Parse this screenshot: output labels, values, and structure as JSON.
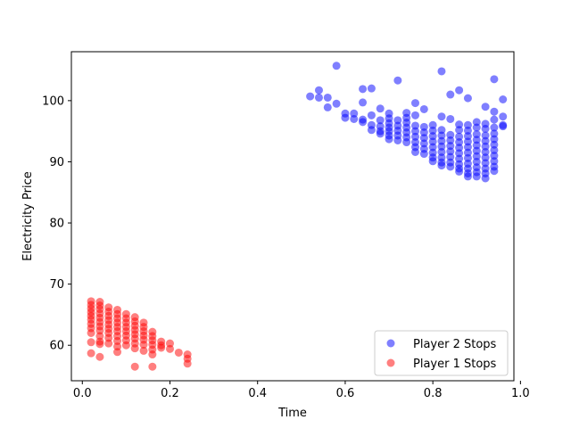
{
  "chart_data": {
    "type": "scatter",
    "title": "",
    "xlabel": "Time",
    "ylabel": "Electricity Price",
    "xlim": [
      -0.025,
      0.985
    ],
    "ylim": [
      54.2,
      108.0
    ],
    "xticks": [
      0.0,
      0.2,
      0.4,
      0.6,
      0.8,
      1.0
    ],
    "xtick_labels": [
      "0.0",
      "0.2",
      "0.4",
      "0.6",
      "0.8",
      "1.0"
    ],
    "yticks": [
      60,
      70,
      80,
      90,
      100
    ],
    "ytick_labels": [
      "60",
      "70",
      "80",
      "90",
      "100"
    ],
    "grid": false,
    "legend_position": "lower-right",
    "series": [
      {
        "name": "Player 2 Stops",
        "color": "#0000ff",
        "alpha": 0.5,
        "points": [
          [
            0.52,
            100.7
          ],
          [
            0.54,
            101.7
          ],
          [
            0.54,
            100.5
          ],
          [
            0.56,
            100.5
          ],
          [
            0.56,
            98.9
          ],
          [
            0.58,
            105.7
          ],
          [
            0.58,
            99.5
          ],
          [
            0.6,
            97.9
          ],
          [
            0.6,
            97.2
          ],
          [
            0.62,
            97.9
          ],
          [
            0.62,
            97.0
          ],
          [
            0.64,
            101.9
          ],
          [
            0.64,
            99.7
          ],
          [
            0.64,
            96.9
          ],
          [
            0.64,
            96.5
          ],
          [
            0.66,
            102.0
          ],
          [
            0.66,
            97.6
          ],
          [
            0.66,
            96.0
          ],
          [
            0.66,
            95.2
          ],
          [
            0.68,
            98.7
          ],
          [
            0.68,
            96.8
          ],
          [
            0.68,
            95.8
          ],
          [
            0.68,
            95.0
          ],
          [
            0.68,
            94.6
          ],
          [
            0.7,
            97.9
          ],
          [
            0.7,
            97.1
          ],
          [
            0.7,
            96.3
          ],
          [
            0.7,
            95.6
          ],
          [
            0.7,
            95.0
          ],
          [
            0.7,
            94.3
          ],
          [
            0.7,
            93.7
          ],
          [
            0.72,
            103.3
          ],
          [
            0.72,
            96.8
          ],
          [
            0.72,
            95.9
          ],
          [
            0.72,
            95.1
          ],
          [
            0.72,
            94.3
          ],
          [
            0.72,
            93.5
          ],
          [
            0.74,
            98.0
          ],
          [
            0.74,
            97.2
          ],
          [
            0.74,
            96.4
          ],
          [
            0.74,
            95.6
          ],
          [
            0.74,
            94.8
          ],
          [
            0.74,
            94.0
          ],
          [
            0.74,
            93.2
          ],
          [
            0.76,
            99.6
          ],
          [
            0.76,
            97.6
          ],
          [
            0.76,
            95.9
          ],
          [
            0.76,
            95.0
          ],
          [
            0.76,
            94.1
          ],
          [
            0.76,
            93.2
          ],
          [
            0.76,
            92.4
          ],
          [
            0.76,
            91.6
          ],
          [
            0.78,
            98.6
          ],
          [
            0.78,
            95.7
          ],
          [
            0.78,
            94.8
          ],
          [
            0.78,
            93.9
          ],
          [
            0.78,
            93.0
          ],
          [
            0.78,
            92.1
          ],
          [
            0.78,
            91.3
          ],
          [
            0.8,
            96.0
          ],
          [
            0.8,
            95.1
          ],
          [
            0.8,
            94.2
          ],
          [
            0.8,
            93.3
          ],
          [
            0.8,
            92.4
          ],
          [
            0.8,
            91.5
          ],
          [
            0.8,
            90.7
          ],
          [
            0.8,
            90.1
          ],
          [
            0.82,
            104.8
          ],
          [
            0.82,
            97.4
          ],
          [
            0.82,
            95.2
          ],
          [
            0.82,
            94.3
          ],
          [
            0.82,
            93.4
          ],
          [
            0.82,
            92.5
          ],
          [
            0.82,
            91.6
          ],
          [
            0.82,
            90.7
          ],
          [
            0.82,
            89.9
          ],
          [
            0.82,
            89.4
          ],
          [
            0.84,
            101.0
          ],
          [
            0.84,
            97.0
          ],
          [
            0.84,
            94.4
          ],
          [
            0.84,
            93.5
          ],
          [
            0.84,
            92.6
          ],
          [
            0.84,
            91.7
          ],
          [
            0.84,
            90.8
          ],
          [
            0.84,
            89.9
          ],
          [
            0.84,
            89.2
          ],
          [
            0.86,
            101.7
          ],
          [
            0.86,
            96.1
          ],
          [
            0.86,
            95.2
          ],
          [
            0.86,
            94.1
          ],
          [
            0.86,
            93.2
          ],
          [
            0.86,
            92.3
          ],
          [
            0.86,
            91.4
          ],
          [
            0.86,
            90.5
          ],
          [
            0.86,
            89.6
          ],
          [
            0.86,
            88.9
          ],
          [
            0.86,
            88.4
          ],
          [
            0.88,
            100.4
          ],
          [
            0.88,
            96.0
          ],
          [
            0.88,
            95.1
          ],
          [
            0.88,
            94.2
          ],
          [
            0.88,
            93.3
          ],
          [
            0.88,
            92.4
          ],
          [
            0.88,
            91.5
          ],
          [
            0.88,
            90.6
          ],
          [
            0.88,
            89.7
          ],
          [
            0.88,
            88.9
          ],
          [
            0.88,
            88.1
          ],
          [
            0.88,
            87.6
          ],
          [
            0.9,
            96.5
          ],
          [
            0.9,
            95.6
          ],
          [
            0.9,
            94.5
          ],
          [
            0.9,
            93.6
          ],
          [
            0.9,
            92.7
          ],
          [
            0.9,
            91.8
          ],
          [
            0.9,
            90.9
          ],
          [
            0.9,
            90.0
          ],
          [
            0.9,
            89.1
          ],
          [
            0.9,
            88.3
          ],
          [
            0.9,
            87.6
          ],
          [
            0.92,
            99.0
          ],
          [
            0.92,
            96.2
          ],
          [
            0.92,
            95.4
          ],
          [
            0.92,
            94.3
          ],
          [
            0.92,
            93.4
          ],
          [
            0.92,
            92.5
          ],
          [
            0.92,
            91.6
          ],
          [
            0.92,
            90.7
          ],
          [
            0.92,
            89.8
          ],
          [
            0.92,
            88.9
          ],
          [
            0.92,
            88.1
          ],
          [
            0.92,
            87.3
          ],
          [
            0.94,
            103.5
          ],
          [
            0.94,
            98.2
          ],
          [
            0.94,
            96.9
          ],
          [
            0.94,
            95.6
          ],
          [
            0.94,
            94.6
          ],
          [
            0.94,
            93.7
          ],
          [
            0.94,
            92.8
          ],
          [
            0.94,
            91.9
          ],
          [
            0.94,
            91.0
          ],
          [
            0.94,
            90.1
          ],
          [
            0.94,
            89.2
          ],
          [
            0.94,
            88.5
          ],
          [
            0.96,
            100.2
          ],
          [
            0.96,
            97.4
          ],
          [
            0.96,
            96.0
          ],
          [
            0.96,
            95.8
          ]
        ]
      },
      {
        "name": "Player 1 Stops",
        "color": "#ff0000",
        "alpha": 0.5,
        "points": [
          [
            0.02,
            67.2
          ],
          [
            0.02,
            66.6
          ],
          [
            0.02,
            66.0
          ],
          [
            0.02,
            65.4
          ],
          [
            0.02,
            64.8
          ],
          [
            0.02,
            64.2
          ],
          [
            0.02,
            63.5
          ],
          [
            0.02,
            62.8
          ],
          [
            0.02,
            62.0
          ],
          [
            0.02,
            60.5
          ],
          [
            0.02,
            58.7
          ],
          [
            0.04,
            67.1
          ],
          [
            0.04,
            66.5
          ],
          [
            0.04,
            65.9
          ],
          [
            0.04,
            65.2
          ],
          [
            0.04,
            64.5
          ],
          [
            0.04,
            63.8
          ],
          [
            0.04,
            63.1
          ],
          [
            0.04,
            62.4
          ],
          [
            0.04,
            61.5
          ],
          [
            0.04,
            60.6
          ],
          [
            0.04,
            60.2
          ],
          [
            0.04,
            58.1
          ],
          [
            0.06,
            66.2
          ],
          [
            0.06,
            65.5
          ],
          [
            0.06,
            64.8
          ],
          [
            0.06,
            64.1
          ],
          [
            0.06,
            63.4
          ],
          [
            0.06,
            62.7
          ],
          [
            0.06,
            62.0
          ],
          [
            0.06,
            61.2
          ],
          [
            0.06,
            60.3
          ],
          [
            0.08,
            65.8
          ],
          [
            0.08,
            65.1
          ],
          [
            0.08,
            64.4
          ],
          [
            0.08,
            63.7
          ],
          [
            0.08,
            63.0
          ],
          [
            0.08,
            62.3
          ],
          [
            0.08,
            61.5
          ],
          [
            0.08,
            60.7
          ],
          [
            0.08,
            59.8
          ],
          [
            0.08,
            58.9
          ],
          [
            0.1,
            65.1
          ],
          [
            0.1,
            64.4
          ],
          [
            0.1,
            63.7
          ],
          [
            0.1,
            63.0
          ],
          [
            0.1,
            62.3
          ],
          [
            0.1,
            61.6
          ],
          [
            0.1,
            60.8
          ],
          [
            0.1,
            60.0
          ],
          [
            0.12,
            64.6
          ],
          [
            0.12,
            63.9
          ],
          [
            0.12,
            63.2
          ],
          [
            0.12,
            62.5
          ],
          [
            0.12,
            61.8
          ],
          [
            0.12,
            61.1
          ],
          [
            0.12,
            60.3
          ],
          [
            0.12,
            59.5
          ],
          [
            0.12,
            56.5
          ],
          [
            0.14,
            63.7
          ],
          [
            0.14,
            63.0
          ],
          [
            0.14,
            62.3
          ],
          [
            0.14,
            61.6
          ],
          [
            0.14,
            60.9
          ],
          [
            0.14,
            60.1
          ],
          [
            0.14,
            59.1
          ],
          [
            0.16,
            62.2
          ],
          [
            0.16,
            61.5
          ],
          [
            0.16,
            60.8
          ],
          [
            0.16,
            60.1
          ],
          [
            0.16,
            59.3
          ],
          [
            0.16,
            58.5
          ],
          [
            0.16,
            56.5
          ],
          [
            0.18,
            60.6
          ],
          [
            0.18,
            60.0
          ],
          [
            0.18,
            59.6
          ],
          [
            0.2,
            60.3
          ],
          [
            0.2,
            59.4
          ],
          [
            0.22,
            58.8
          ],
          [
            0.24,
            58.5
          ],
          [
            0.24,
            57.8
          ],
          [
            0.24,
            57.0
          ]
        ]
      }
    ]
  }
}
